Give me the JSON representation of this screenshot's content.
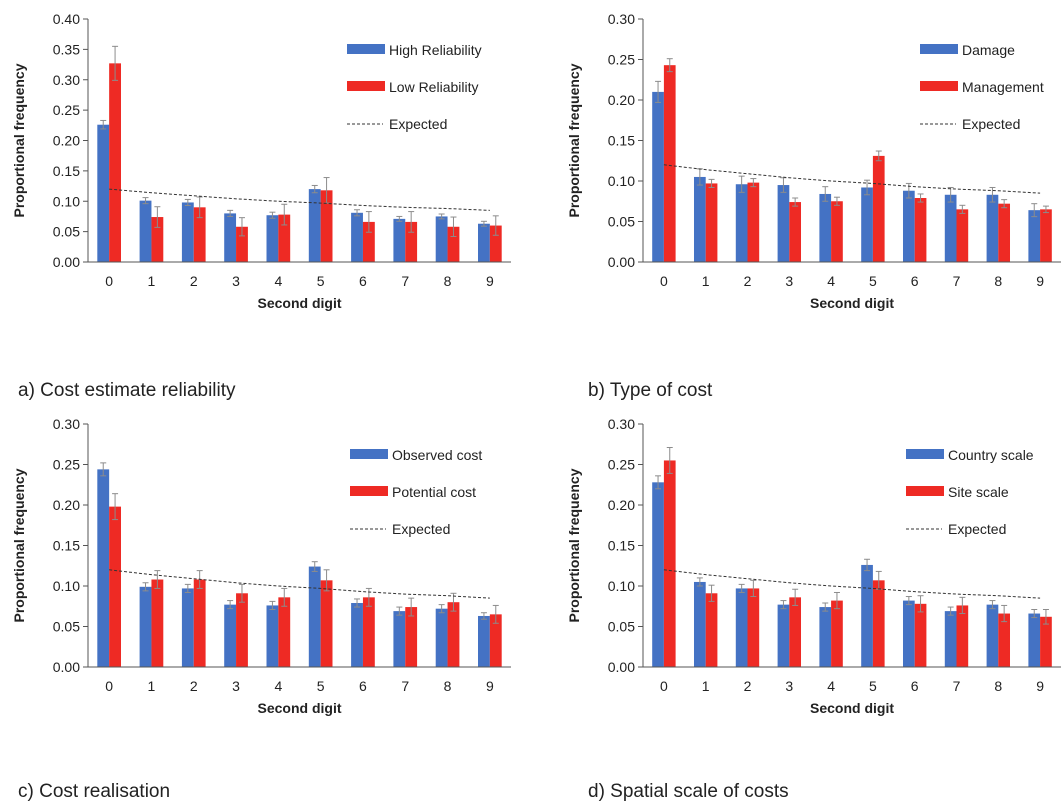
{
  "colors": {
    "series_a": "#4472C4",
    "series_b": "#EE2A24",
    "expected": "#333333",
    "error_bar": "#8c8c8c",
    "axis": "#555555"
  },
  "captions": [
    "a)  Cost estimate reliability",
    "b)  Type of cost",
    "c)  Cost realisation",
    "d)  Spatial scale of costs"
  ],
  "chart_data": [
    {
      "type": "bar",
      "categories": [
        "0",
        "1",
        "2",
        "3",
        "4",
        "5",
        "6",
        "7",
        "8",
        "9"
      ],
      "xlabel": "Second digit",
      "ylabel": "Proportional frequency",
      "ylim": [
        0,
        0.4
      ],
      "yticks": [
        0.0,
        0.05,
        0.1,
        0.15,
        0.2,
        0.25,
        0.3,
        0.35,
        0.4
      ],
      "ytick_labels": [
        "0.00",
        "0.05",
        "0.10",
        "0.15",
        "0.20",
        "0.25",
        "0.30",
        "0.35",
        "0.40"
      ],
      "legend_position": "top-right",
      "series": [
        {
          "name": "High Reliability",
          "values": [
            0.226,
            0.101,
            0.098,
            0.08,
            0.077,
            0.12,
            0.081,
            0.071,
            0.075,
            0.063
          ],
          "errors": [
            0.007,
            0.005,
            0.005,
            0.005,
            0.005,
            0.006,
            0.005,
            0.004,
            0.004,
            0.004
          ]
        },
        {
          "name": "Low Reliability",
          "values": [
            0.327,
            0.074,
            0.09,
            0.058,
            0.078,
            0.118,
            0.066,
            0.066,
            0.058,
            0.06
          ],
          "errors": [
            0.028,
            0.017,
            0.017,
            0.015,
            0.017,
            0.021,
            0.017,
            0.017,
            0.016,
            0.016
          ]
        }
      ],
      "expected": {
        "name": "Expected",
        "values": [
          0.12,
          0.114,
          0.109,
          0.104,
          0.1,
          0.097,
          0.093,
          0.09,
          0.088,
          0.085
        ]
      }
    },
    {
      "type": "bar",
      "categories": [
        "0",
        "1",
        "2",
        "3",
        "4",
        "5",
        "6",
        "7",
        "8",
        "9"
      ],
      "xlabel": "Second digit",
      "ylabel": "Proportional frequency",
      "ylim": [
        0,
        0.3
      ],
      "yticks": [
        0.0,
        0.05,
        0.1,
        0.15,
        0.2,
        0.25,
        0.3
      ],
      "ytick_labels": [
        "0.00",
        "0.05",
        "0.10",
        "0.15",
        "0.20",
        "0.25",
        "0.30"
      ],
      "legend_position": "top-right",
      "series": [
        {
          "name": "Damage",
          "values": [
            0.21,
            0.105,
            0.096,
            0.095,
            0.084,
            0.092,
            0.088,
            0.083,
            0.083,
            0.064
          ],
          "errors": [
            0.013,
            0.01,
            0.01,
            0.009,
            0.009,
            0.009,
            0.009,
            0.009,
            0.009,
            0.008
          ]
        },
        {
          "name": "Management",
          "values": [
            0.243,
            0.097,
            0.098,
            0.074,
            0.075,
            0.131,
            0.079,
            0.065,
            0.072,
            0.065
          ],
          "errors": [
            0.008,
            0.005,
            0.005,
            0.005,
            0.005,
            0.006,
            0.005,
            0.005,
            0.005,
            0.004
          ]
        }
      ],
      "expected": {
        "name": "Expected",
        "values": [
          0.12,
          0.114,
          0.109,
          0.104,
          0.1,
          0.097,
          0.093,
          0.09,
          0.088,
          0.085
        ]
      }
    },
    {
      "type": "bar",
      "categories": [
        "0",
        "1",
        "2",
        "3",
        "4",
        "5",
        "6",
        "7",
        "8",
        "9"
      ],
      "xlabel": "Second digit",
      "ylabel": "Proportional frequency",
      "ylim": [
        0,
        0.3
      ],
      "yticks": [
        0.0,
        0.05,
        0.1,
        0.15,
        0.2,
        0.25,
        0.3
      ],
      "ytick_labels": [
        "0.00",
        "0.05",
        "0.10",
        "0.15",
        "0.20",
        "0.25",
        "0.30"
      ],
      "legend_position": "top-right",
      "series": [
        {
          "name": "Observed cost",
          "values": [
            0.244,
            0.099,
            0.097,
            0.077,
            0.076,
            0.124,
            0.079,
            0.069,
            0.072,
            0.063
          ],
          "errors": [
            0.008,
            0.005,
            0.005,
            0.005,
            0.005,
            0.006,
            0.005,
            0.005,
            0.005,
            0.004
          ]
        },
        {
          "name": "Potential cost",
          "values": [
            0.198,
            0.108,
            0.108,
            0.091,
            0.086,
            0.107,
            0.086,
            0.074,
            0.08,
            0.065
          ],
          "errors": [
            0.016,
            0.011,
            0.011,
            0.011,
            0.011,
            0.013,
            0.011,
            0.011,
            0.011,
            0.011
          ]
        }
      ],
      "expected": {
        "name": "Expected",
        "values": [
          0.12,
          0.114,
          0.109,
          0.104,
          0.1,
          0.097,
          0.093,
          0.09,
          0.088,
          0.085
        ]
      }
    },
    {
      "type": "bar",
      "categories": [
        "0",
        "1",
        "2",
        "3",
        "4",
        "5",
        "6",
        "7",
        "8",
        "9"
      ],
      "xlabel": "Second digit",
      "ylabel": "Proportional frequency",
      "ylim": [
        0,
        0.3
      ],
      "yticks": [
        0.0,
        0.05,
        0.1,
        0.15,
        0.2,
        0.25,
        0.3
      ],
      "ytick_labels": [
        "0.00",
        "0.05",
        "0.10",
        "0.15",
        "0.20",
        "0.25",
        "0.30"
      ],
      "legend_position": "top-right",
      "series": [
        {
          "name": "Country scale",
          "values": [
            0.228,
            0.105,
            0.097,
            0.077,
            0.074,
            0.126,
            0.082,
            0.069,
            0.077,
            0.066
          ],
          "errors": [
            0.008,
            0.005,
            0.005,
            0.005,
            0.005,
            0.007,
            0.005,
            0.005,
            0.005,
            0.005
          ]
        },
        {
          "name": "Site scale",
          "values": [
            0.255,
            0.091,
            0.097,
            0.086,
            0.082,
            0.107,
            0.078,
            0.076,
            0.066,
            0.062
          ],
          "errors": [
            0.016,
            0.01,
            0.01,
            0.01,
            0.01,
            0.011,
            0.01,
            0.01,
            0.01,
            0.009
          ]
        }
      ],
      "expected": {
        "name": "Expected",
        "values": [
          0.12,
          0.114,
          0.109,
          0.104,
          0.1,
          0.097,
          0.093,
          0.09,
          0.088,
          0.085
        ]
      }
    }
  ]
}
